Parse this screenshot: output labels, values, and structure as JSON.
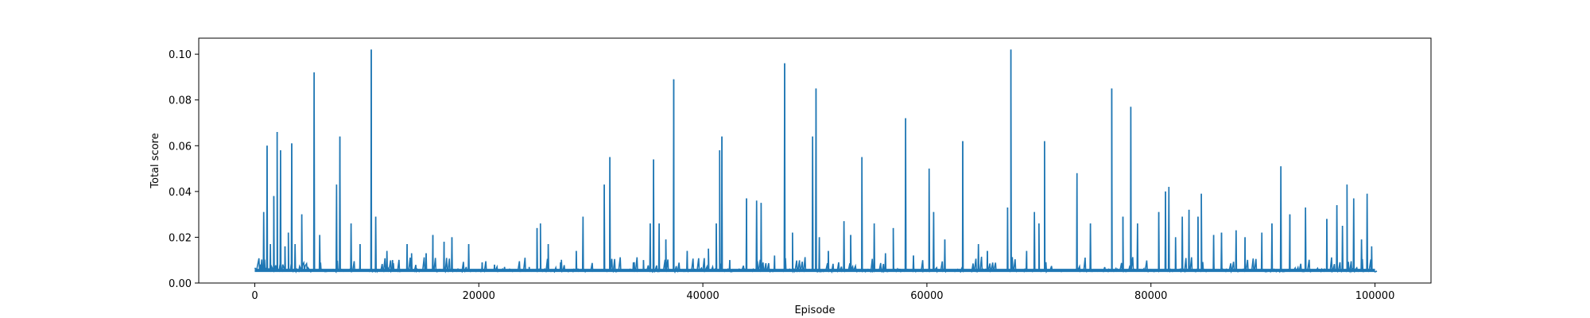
{
  "chart_data": {
    "type": "line",
    "title": "",
    "xlabel": "Episode",
    "ylabel": "Total score",
    "xlim": [
      -5000,
      105000
    ],
    "ylim": [
      0.0,
      0.107
    ],
    "xticks": [
      0,
      20000,
      40000,
      60000,
      80000,
      100000
    ],
    "xtick_labels": [
      "0",
      "20000",
      "40000",
      "60000",
      "80000",
      "100000"
    ],
    "yticks": [
      0.0,
      0.02,
      0.04,
      0.06,
      0.08,
      0.1
    ],
    "ytick_labels": [
      "0.00",
      "0.02",
      "0.04",
      "0.06",
      "0.08",
      "0.10"
    ],
    "grid": false,
    "legend": "none",
    "series": [
      {
        "color": "#1f77b4",
        "baseline": 0.0055,
        "x_range": [
          0,
          100000
        ],
        "peaks": [
          [
            500,
            0.007
          ],
          [
            800,
            0.031
          ],
          [
            1100,
            0.06
          ],
          [
            1400,
            0.017
          ],
          [
            1700,
            0.038
          ],
          [
            2000,
            0.066
          ],
          [
            2300,
            0.058
          ],
          [
            2700,
            0.016
          ],
          [
            3000,
            0.022
          ],
          [
            3300,
            0.061
          ],
          [
            3600,
            0.017
          ],
          [
            4200,
            0.03
          ],
          [
            5300,
            0.092
          ],
          [
            5800,
            0.021
          ],
          [
            7300,
            0.043
          ],
          [
            7600,
            0.064
          ],
          [
            8600,
            0.026
          ],
          [
            9400,
            0.017
          ],
          [
            10400,
            0.102
          ],
          [
            10800,
            0.029
          ],
          [
            11800,
            0.014
          ],
          [
            12300,
            0.01
          ],
          [
            13600,
            0.017
          ],
          [
            14000,
            0.013
          ],
          [
            15300,
            0.013
          ],
          [
            15900,
            0.021
          ],
          [
            16900,
            0.018
          ],
          [
            17600,
            0.02
          ],
          [
            19100,
            0.017
          ],
          [
            20300,
            0.009
          ],
          [
            21400,
            0.008
          ],
          [
            22300,
            0.007
          ],
          [
            24500,
            0.007
          ],
          [
            25200,
            0.024
          ],
          [
            25500,
            0.026
          ],
          [
            26200,
            0.017
          ],
          [
            27300,
            0.009
          ],
          [
            28700,
            0.014
          ],
          [
            29300,
            0.029
          ],
          [
            31200,
            0.043
          ],
          [
            31700,
            0.055
          ],
          [
            33800,
            0.009
          ],
          [
            34700,
            0.01
          ],
          [
            35300,
            0.026
          ],
          [
            35600,
            0.054
          ],
          [
            36100,
            0.026
          ],
          [
            36700,
            0.019
          ],
          [
            37400,
            0.089
          ],
          [
            38600,
            0.014
          ],
          [
            40500,
            0.015
          ],
          [
            41200,
            0.026
          ],
          [
            41500,
            0.058
          ],
          [
            41700,
            0.064
          ],
          [
            42400,
            0.01
          ],
          [
            43900,
            0.037
          ],
          [
            44800,
            0.036
          ],
          [
            45200,
            0.035
          ],
          [
            46400,
            0.012
          ],
          [
            47300,
            0.096
          ],
          [
            48000,
            0.022
          ],
          [
            49800,
            0.064
          ],
          [
            50100,
            0.085
          ],
          [
            50400,
            0.02
          ],
          [
            51200,
            0.014
          ],
          [
            52600,
            0.027
          ],
          [
            53200,
            0.021
          ],
          [
            54200,
            0.055
          ],
          [
            55300,
            0.026
          ],
          [
            56300,
            0.013
          ],
          [
            57000,
            0.024
          ],
          [
            58100,
            0.072
          ],
          [
            58800,
            0.012
          ],
          [
            60200,
            0.05
          ],
          [
            60600,
            0.031
          ],
          [
            61600,
            0.019
          ],
          [
            63200,
            0.062
          ],
          [
            64600,
            0.017
          ],
          [
            65400,
            0.014
          ],
          [
            67200,
            0.033
          ],
          [
            67500,
            0.102
          ],
          [
            68900,
            0.014
          ],
          [
            69600,
            0.031
          ],
          [
            70000,
            0.026
          ],
          [
            70500,
            0.062
          ],
          [
            73400,
            0.048
          ],
          [
            74600,
            0.026
          ],
          [
            76500,
            0.085
          ],
          [
            77500,
            0.029
          ],
          [
            78200,
            0.077
          ],
          [
            78800,
            0.026
          ],
          [
            80700,
            0.031
          ],
          [
            81300,
            0.04
          ],
          [
            81600,
            0.042
          ],
          [
            82200,
            0.02
          ],
          [
            82800,
            0.029
          ],
          [
            83400,
            0.032
          ],
          [
            84200,
            0.029
          ],
          [
            84500,
            0.039
          ],
          [
            85600,
            0.021
          ],
          [
            86300,
            0.022
          ],
          [
            87600,
            0.023
          ],
          [
            88400,
            0.02
          ],
          [
            89900,
            0.022
          ],
          [
            90800,
            0.026
          ],
          [
            91600,
            0.051
          ],
          [
            92400,
            0.03
          ],
          [
            93800,
            0.033
          ],
          [
            95700,
            0.028
          ],
          [
            96600,
            0.034
          ],
          [
            97100,
            0.025
          ],
          [
            97500,
            0.043
          ],
          [
            98100,
            0.037
          ],
          [
            98800,
            0.019
          ],
          [
            99300,
            0.039
          ],
          [
            99700,
            0.016
          ]
        ]
      }
    ]
  }
}
